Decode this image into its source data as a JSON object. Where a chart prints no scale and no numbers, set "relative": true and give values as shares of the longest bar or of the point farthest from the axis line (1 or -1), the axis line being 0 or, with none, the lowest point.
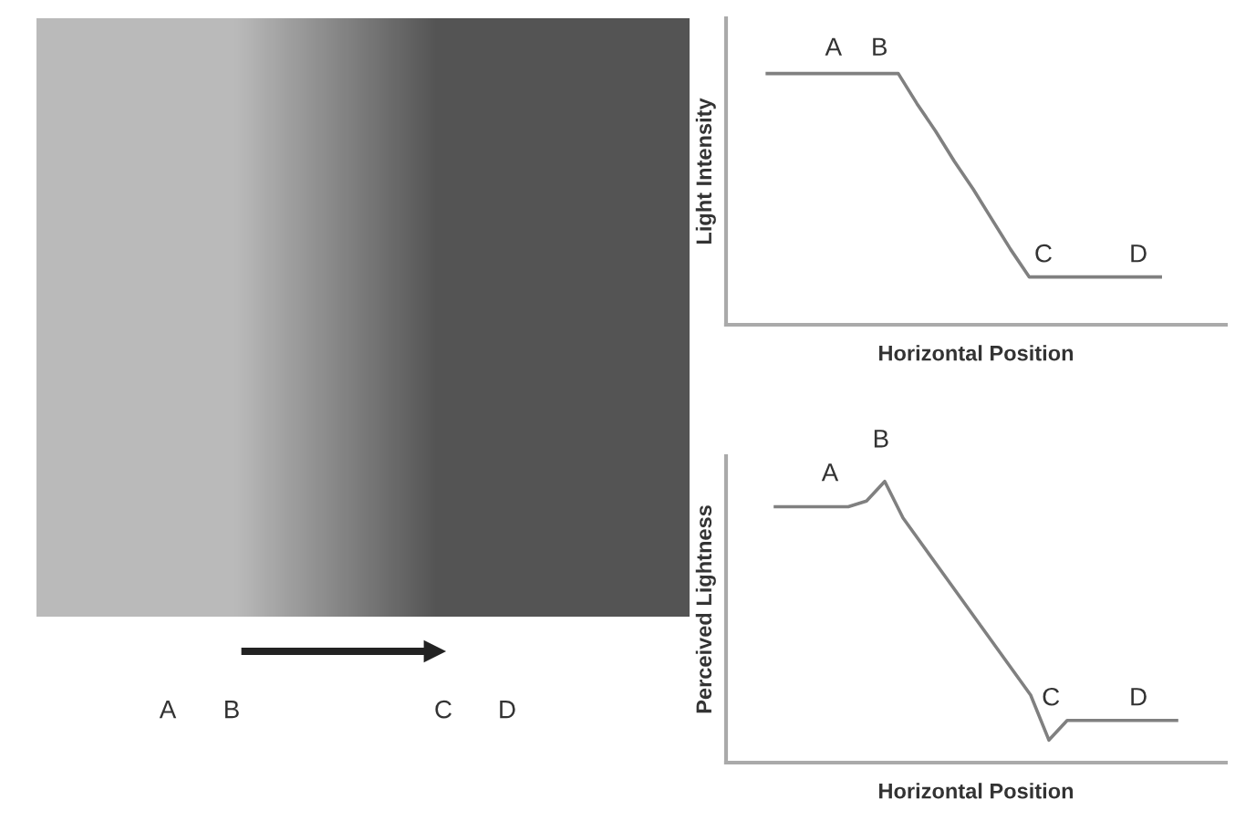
{
  "chart_data": [
    {
      "type": "other",
      "annotations": [
        "A",
        "B",
        "C",
        "D"
      ]
    },
    {
      "type": "line",
      "relative": true,
      "ylabel": "Light Intensity",
      "xlabel": "Horizontal Position",
      "tick_labels": false,
      "annotations": [
        "A",
        "B",
        "C",
        "D"
      ],
      "categories": [
        null,
        null,
        null,
        null,
        null,
        null,
        null,
        null,
        null,
        null,
        null,
        null,
        null,
        null,
        null,
        null,
        null,
        null,
        null,
        null,
        null,
        null
      ],
      "series": [
        {
          "color": "#808080",
          "values": [
            1,
            1,
            1,
            1,
            1,
            1,
            1,
            1,
            0.88,
            0.77,
            0.65,
            0.54,
            0.42,
            0.3,
            0.19,
            0.19,
            0.19,
            0.19,
            0.19,
            0.19,
            0.19,
            0.19
          ]
        }
      ]
    },
    {
      "type": "line",
      "relative": true,
      "ylabel": "Perceived Lightness",
      "xlabel": "Horizontal Position",
      "tick_labels": false,
      "annotations": [
        "A",
        "B",
        "C",
        "D"
      ],
      "categories": [
        null,
        null,
        null,
        null,
        null,
        null,
        null,
        null,
        null,
        null,
        null,
        null,
        null,
        null,
        null,
        null,
        null,
        null,
        null,
        null,
        null,
        null,
        null
      ],
      "series": [
        {
          "color": "#808080",
          "values": [
            0.91,
            0.91,
            0.91,
            0.91,
            0.91,
            0.93,
            1,
            0.87,
            0.78,
            0.69,
            0.6,
            0.51,
            0.42,
            0.33,
            0.24,
            0.08,
            0.15,
            0.15,
            0.15,
            0.15,
            0.15,
            0.15,
            0.15
          ]
        }
      ]
    }
  ]
}
